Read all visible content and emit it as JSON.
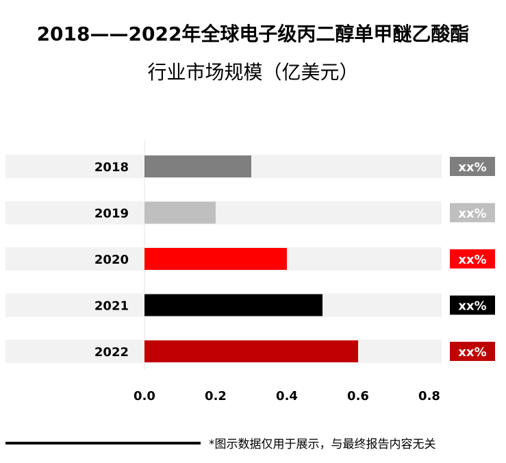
{
  "title_line1": "2018——2022年全球电子级丙二醇单甲醚乙酸酯",
  "title_line2": "行业市场规模（亿美元）",
  "footer_note": "*图示数据仅用于展示，与最终报告内容无关",
  "chart_data": {
    "type": "bar",
    "orientation": "horizontal",
    "title": "2018——2022年全球电子级丙二醇单甲醚乙酸酯行业市场规模（亿美元）",
    "categories": [
      "2018",
      "2019",
      "2020",
      "2021",
      "2022"
    ],
    "values": [
      0.3,
      0.2,
      0.4,
      0.5,
      0.6
    ],
    "growth_labels": [
      "xx%",
      "xx%",
      "xx%",
      "xx%",
      "xx%"
    ],
    "bar_colors": [
      "#7f7f7f",
      "#bfbfbf",
      "#ff0000",
      "#000000",
      "#c00000"
    ],
    "xlim": [
      0,
      0.8
    ],
    "xticks": [
      "0.0",
      "0.2",
      "0.4",
      "0.6",
      "0.8"
    ],
    "xlabel": "",
    "ylabel": "",
    "legend": "none",
    "grid": false
  }
}
